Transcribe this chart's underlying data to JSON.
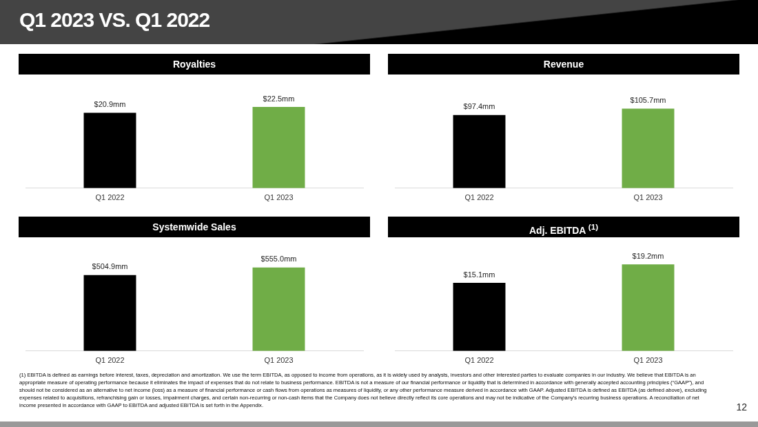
{
  "chart_data": [
    {
      "type": "bar",
      "title": "Royalties",
      "categories": [
        "Q1 2022",
        "Q1 2023"
      ],
      "values": [
        20.9,
        22.5
      ],
      "colors": [
        "#000000",
        "#70ad47"
      ],
      "value_labels": [
        "$20.9mm",
        "$22.5mm"
      ],
      "tick_labels": "x",
      "grid": false,
      "legend": false,
      "annotations": [
        "Q1 2023 VS. Q1 2022"
      ]
    },
    {
      "type": "bar",
      "title": "Revenue",
      "categories": [
        "Q1 2022",
        "Q1 2023"
      ],
      "values": [
        97.4,
        105.7
      ],
      "colors": [
        "#000000",
        "#70ad47"
      ],
      "value_labels": [
        "$97.4mm",
        "$105.7mm"
      ],
      "tick_labels": "x",
      "grid": false,
      "legend": false
    },
    {
      "type": "bar",
      "title": "Systemwide Sales",
      "categories": [
        "Q1 2022",
        "Q1 2023"
      ],
      "values": [
        504.9,
        555.0
      ],
      "colors": [
        "#000000",
        "#70ad47"
      ],
      "value_labels": [
        "$504.9mm",
        "$555.0mm"
      ],
      "tick_labels": "x",
      "grid": false,
      "legend": false
    },
    {
      "type": "bar",
      "title": "Adj. EBITDA $^{(1)}$",
      "categories": [
        "Q1 2022",
        "Q1 2023"
      ],
      "values": [
        15.1,
        19.2
      ],
      "colors": [
        "#000000",
        "#70ad47"
      ],
      "value_labels": [
        "$15.1mm",
        "$19.2mm"
      ],
      "tick_labels": "x",
      "grid": false,
      "legend": false,
      "annotations": [
        "(1) EBITDA is defined as earnings before interest, taxes, depreciation and amortization. We use the term EBITDA, as opposed to income from operations, as it is widely used by analysts, investors and other interested parties to evaluate companies in our industry. We believe that EBITDA is an appropriate measure of operating performance because it eliminates the impact of expenses that do not relate to business performance. EBITDA is not a measure of our financial performance or liquidity that is determined in accordance with generally accepted accounting principles (“GAAP”), and should not be considered as an alternative to net income (loss) as a measure of financial performance or cash flows from operations as measures of liquidity, or any other performance measure derived in accordance with GAAP. Adjusted EBITDA is defined as EBITDA (as defined above), excluding expenses related to acquisitions, refranchising gain or losses, impairment charges, and certain non-recurring or non-cash items that the Company does not believe directly reflect its core operations and may not be indicative of the Company’s recurring business operations. A reconciliation of net income presented in accordance with GAAP to EBITDA and adjusted EBITDA is set forth in the Appendix.",
        "12"
      ]
    }
  ]
}
